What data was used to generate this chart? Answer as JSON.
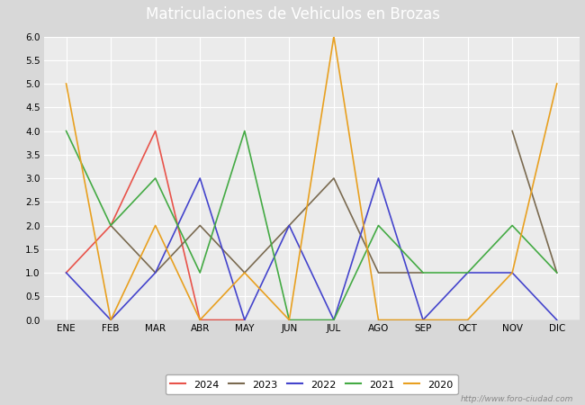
{
  "title": "Matriculaciones de Vehiculos en Brozas",
  "months": [
    "ENE",
    "FEB",
    "MAR",
    "ABR",
    "MAY",
    "JUN",
    "JUL",
    "AGO",
    "SEP",
    "OCT",
    "NOV",
    "DIC"
  ],
  "series": {
    "2024": {
      "color": "#e8534a",
      "data": [
        1,
        2,
        4,
        0,
        0,
        null,
        null,
        null,
        null,
        null,
        null,
        null
      ]
    },
    "2023": {
      "color": "#7a6a50",
      "data": [
        null,
        2,
        1,
        2,
        1,
        2,
        3,
        1,
        1,
        null,
        4,
        1
      ]
    },
    "2022": {
      "color": "#4444cc",
      "data": [
        1,
        0,
        1,
        3,
        0,
        2,
        0,
        3,
        0,
        1,
        1,
        0
      ]
    },
    "2021": {
      "color": "#44aa44",
      "data": [
        4,
        2,
        3,
        1,
        4,
        0,
        0,
        2,
        1,
        1,
        2,
        1
      ]
    },
    "2020": {
      "color": "#e8a020",
      "data": [
        5,
        0,
        2,
        0,
        1,
        0,
        6,
        0,
        0,
        0,
        1,
        5
      ]
    }
  },
  "ylim": [
    0,
    6.0
  ],
  "yticks": [
    0.0,
    0.5,
    1.0,
    1.5,
    2.0,
    2.5,
    3.0,
    3.5,
    4.0,
    4.5,
    5.0,
    5.5,
    6.0
  ],
  "plot_bg_color": "#ebebeb",
  "title_bg_color": "#4a7fc0",
  "title_text_color": "#ffffff",
  "title_fontsize": 12,
  "watermark": "http://www.foro-ciudad.com",
  "legend_years": [
    "2024",
    "2023",
    "2022",
    "2021",
    "2020"
  ],
  "grid_color": "#ffffff",
  "line_width": 1.2
}
